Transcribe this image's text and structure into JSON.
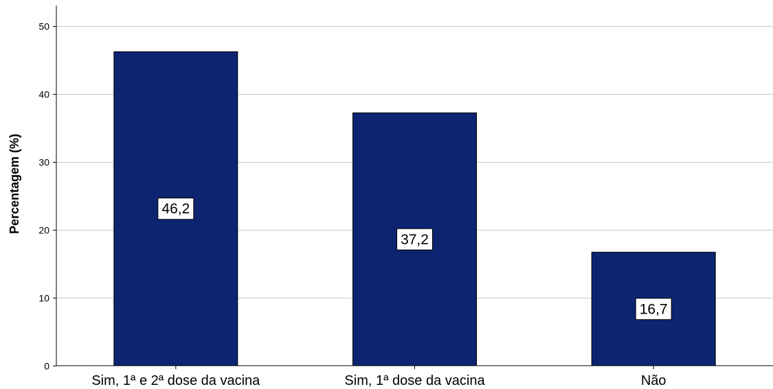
{
  "chart_data": {
    "type": "bar",
    "categories": [
      "Sim, 1ª e 2ª dose da vacina",
      "Sim, 1ª dose da vacina",
      "Não"
    ],
    "values": [
      46.2,
      37.2,
      16.7
    ],
    "data_labels": [
      "46,2",
      "37,2",
      "16,7"
    ],
    "title": "",
    "xlabel": "",
    "ylabel": "Percentagem (%)",
    "ylim": [
      0,
      53
    ],
    "yticks": [
      0,
      10,
      20,
      30,
      40,
      50
    ],
    "ytick_labels": [
      "0",
      "10",
      "20",
      "30",
      "40",
      "50"
    ],
    "grid": "horizontal",
    "legend": "none",
    "colors": {
      "bar": "#0d2570",
      "grid": "#c8c8c8",
      "axis": "#000000"
    }
  }
}
